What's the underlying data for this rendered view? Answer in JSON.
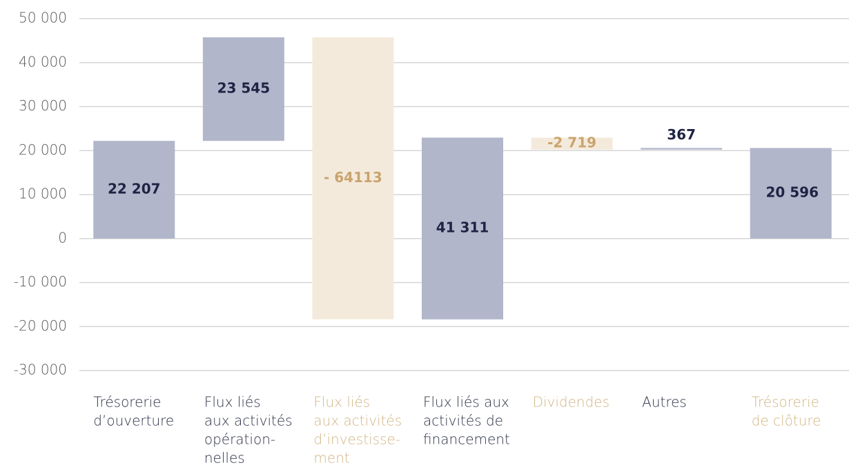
{
  "chart_data": {
    "type": "waterfall",
    "categories": [
      [
        "Trésorerie",
        "d’ouverture"
      ],
      [
        "Flux liés",
        "aux activités",
        "opération-",
        "nelles"
      ],
      [
        "Flux liés",
        "aux activités",
        "d’investisse-",
        "ment"
      ],
      [
        "Flux liés aux",
        "activités de",
        "financement"
      ],
      [
        "Dividendes"
      ],
      [
        "Autres"
      ],
      [
        "Trésorerie",
        "de clôture"
      ]
    ],
    "category_colors": [
      "#2b2f45",
      "#2b2f45",
      "#d2b483",
      "#2b2f45",
      "#d2b483",
      "#2b2f45",
      "#d2b483"
    ],
    "measure": [
      "absolute",
      "relative",
      "relative",
      "relative",
      "relative",
      "relative",
      "total"
    ],
    "values": [
      22207,
      23545,
      -64113,
      41311,
      -2719,
      367,
      20596
    ],
    "value_labels": [
      "22 207",
      "23 545",
      "- 64113",
      "41 311",
      "-2 719",
      "367",
      "20 596"
    ],
    "increasing_color": "#b1b6ca",
    "decreasing_color": "#f4eadc",
    "increasing_label_color": "#1f2445",
    "decreasing_label_color": "#c9a46d",
    "ylim": [
      -30000,
      50000
    ],
    "yticks": [
      {
        "value": -30000,
        "label": "-30 000"
      },
      {
        "value": -20000,
        "label": "-20 000"
      },
      {
        "value": -10000,
        "label": "-10 000"
      },
      0,
      {
        "value": 10000,
        "label": "10 000"
      },
      {
        "value": 20000,
        "label": "20 000"
      },
      {
        "value": 30000,
        "label": "30 000"
      },
      {
        "value": 40000,
        "label": "40 000"
      },
      {
        "value": 50000,
        "label": "50 000"
      }
    ],
    "grid": true
  }
}
